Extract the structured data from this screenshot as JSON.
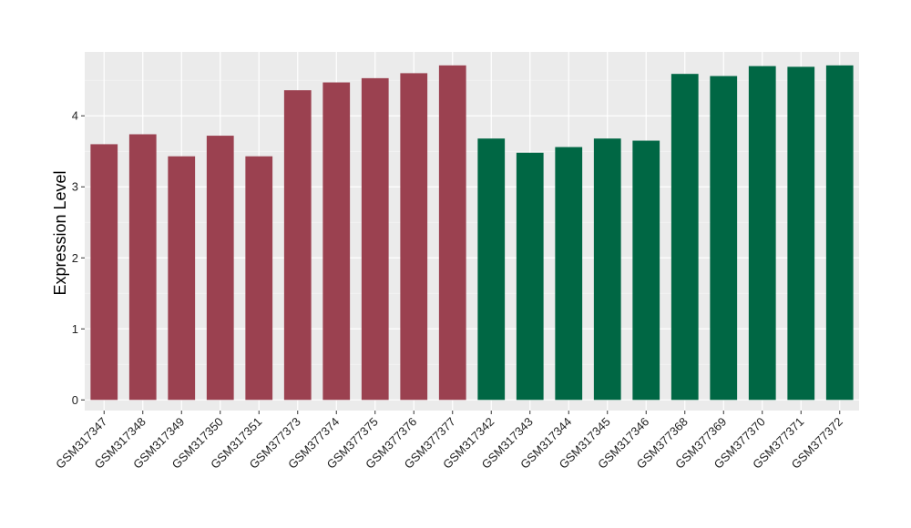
{
  "chart_data": {
    "type": "bar",
    "title": "",
    "xlabel": "",
    "ylabel": "Expression Level",
    "ylim": [
      -0.15,
      4.9
    ],
    "yticks": [
      0,
      1,
      2,
      3,
      4
    ],
    "grid": true,
    "panel_background": "#ebebeb",
    "categories": [
      "GSM317347",
      "GSM317348",
      "GSM317349",
      "GSM317350",
      "GSM317351",
      "GSM377373",
      "GSM377374",
      "GSM377375",
      "GSM377376",
      "GSM377377",
      "GSM317342",
      "GSM317343",
      "GSM317344",
      "GSM317345",
      "GSM317346",
      "GSM377368",
      "GSM377369",
      "GSM377370",
      "GSM377371",
      "GSM377372"
    ],
    "values": [
      3.6,
      3.74,
      3.43,
      3.72,
      3.43,
      4.36,
      4.47,
      4.53,
      4.6,
      4.71,
      3.68,
      3.48,
      3.56,
      3.68,
      3.65,
      4.59,
      4.56,
      4.7,
      4.69,
      4.71
    ],
    "bar_colors": [
      "#9b4150",
      "#9b4150",
      "#9b4150",
      "#9b4150",
      "#9b4150",
      "#9b4150",
      "#9b4150",
      "#9b4150",
      "#9b4150",
      "#9b4150",
      "#006744",
      "#006744",
      "#006744",
      "#006744",
      "#006744",
      "#006744",
      "#006744",
      "#006744",
      "#006744",
      "#006744"
    ]
  }
}
